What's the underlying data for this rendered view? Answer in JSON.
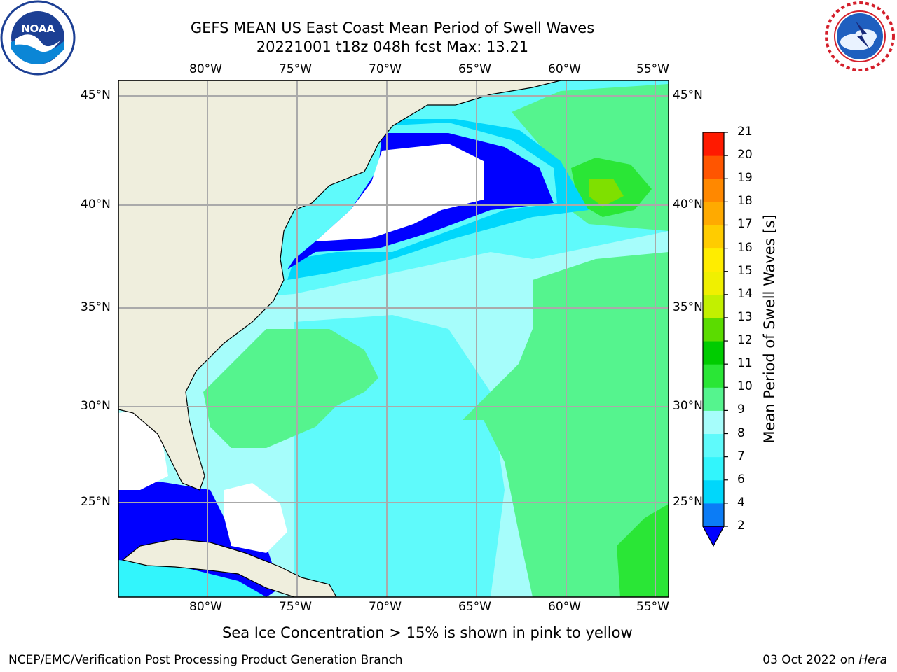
{
  "title_line1": "GEFS MEAN US East Coast Mean Period of Swell Waves",
  "title_line2": "20221001 t18z 048h fcst   Max: 13.21",
  "lon_ticks": [
    "80°W",
    "75°W",
    "70°W",
    "65°W",
    "60°W",
    "55°W"
  ],
  "lat_ticks": [
    "45°N",
    "40°N",
    "35°N",
    "30°N",
    "25°N"
  ],
  "colorbar": {
    "title": "Mean Period of Swell Waves [s]",
    "labels": [
      "2",
      "4",
      "6",
      "7",
      "8",
      "9",
      "10",
      "11",
      "12",
      "13",
      "14",
      "15",
      "16",
      "17",
      "18",
      "19",
      "20",
      "21"
    ],
    "colors": [
      "#0b7cf6",
      "#00d7fb",
      "#32f5fc",
      "#5ffafb",
      "#a6fdfb",
      "#55f48e",
      "#2ae636",
      "#00cc00",
      "#5bdc00",
      "#c2f000",
      "#f0f000",
      "#ffed00",
      "#ffcc00",
      "#ffaa00",
      "#ff8800",
      "#ff5500",
      "#ff1a00"
    ],
    "under_color": "#0000ff"
  },
  "colors": {
    "land": "#efeedd",
    "ocean_base": "#5ffafb",
    "grid": "#aaaaaa"
  },
  "note": "Sea Ice Concentration > 15% is shown in pink to yellow",
  "footer_left": "NCEP/EMC/Verification Post Processing Product Generation Branch",
  "footer_right_date": "03 Oct 2022 on ",
  "footer_right_host": "Hera",
  "logos": {
    "left": "noaa-logo",
    "right": "nws-logo",
    "left_text": "NOAA"
  }
}
